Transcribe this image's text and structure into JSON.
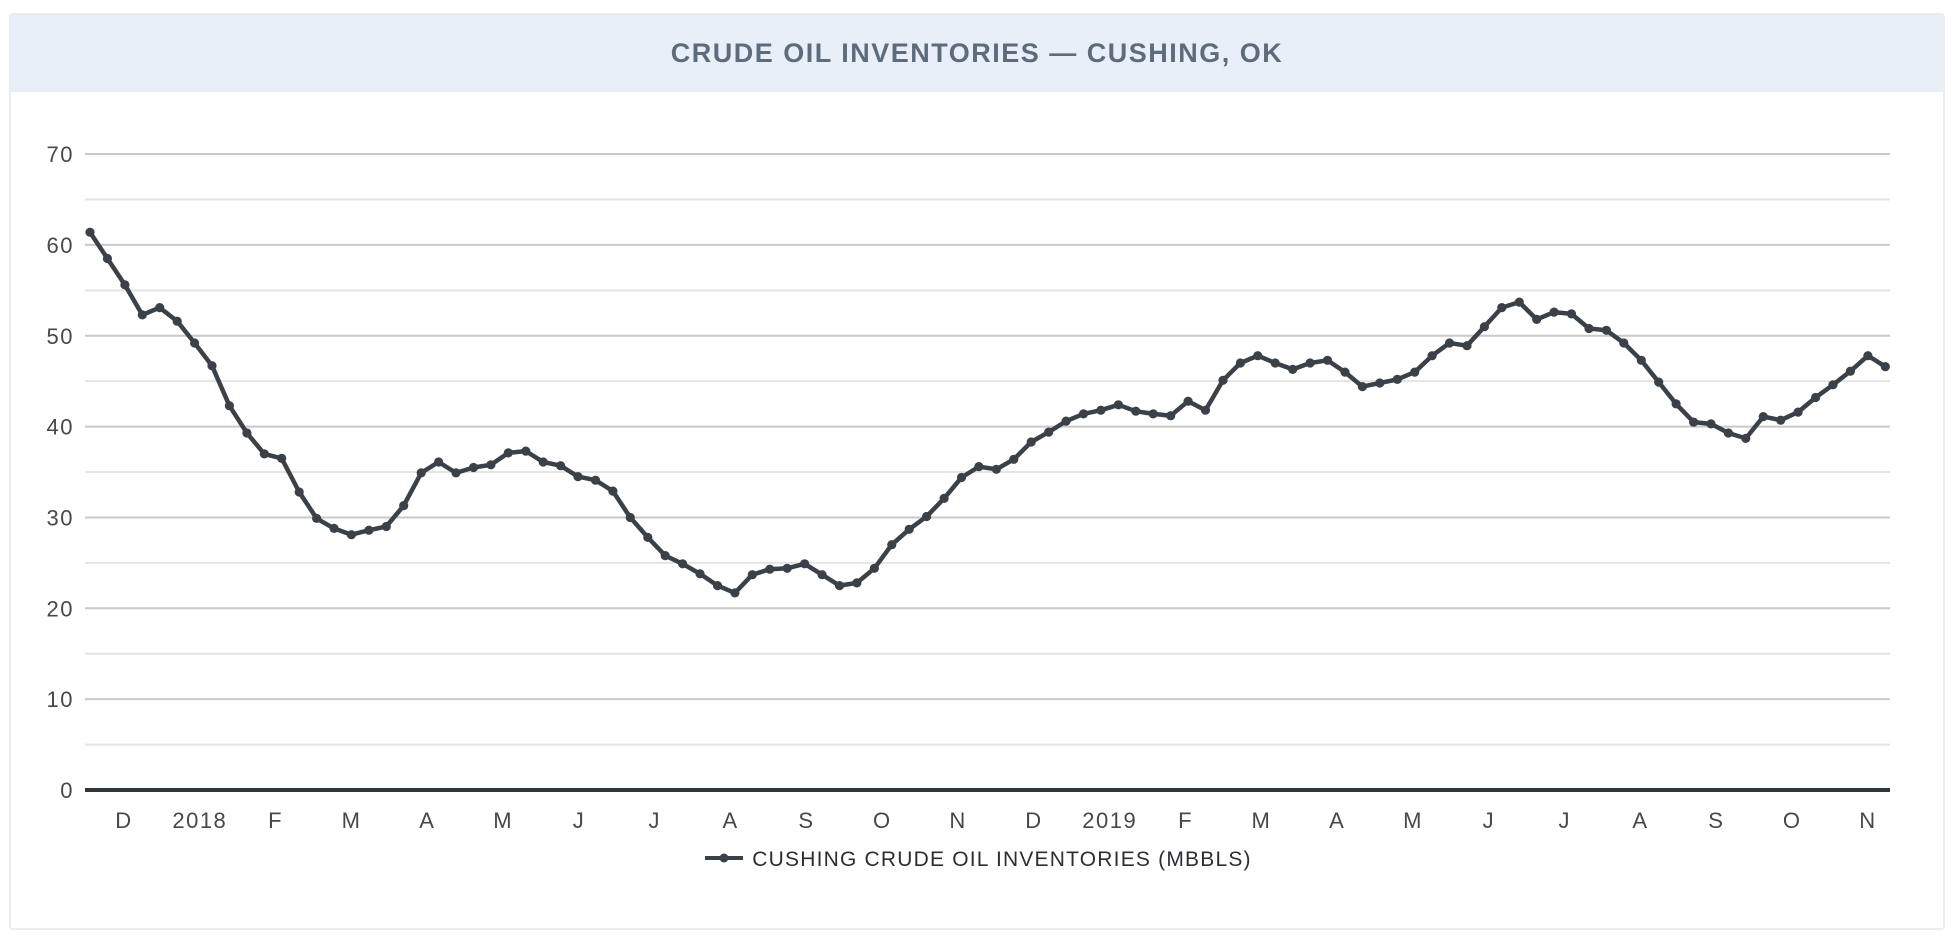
{
  "header": {
    "title": "CRUDE OIL INVENTORIES — CUSHING, OK"
  },
  "legend": {
    "label": "CUSHING CRUDE OIL INVENTORIES (MBBLS)"
  },
  "chart_data": {
    "type": "line",
    "title": "CRUDE OIL INVENTORIES — CUSHING, OK",
    "frequency": "weekly",
    "x_range_note": "Dec 2017 – Nov 2019",
    "x_tick_labels": [
      "D",
      "2018",
      "F",
      "M",
      "A",
      "M",
      "J",
      "J",
      "A",
      "S",
      "O",
      "N",
      "D",
      "2019",
      "F",
      "M",
      "A",
      "M",
      "J",
      "J",
      "A",
      "S",
      "O",
      "N"
    ],
    "y_ticks": [
      0,
      10,
      20,
      30,
      40,
      50,
      60,
      70
    ],
    "ylim": [
      0,
      70
    ],
    "grid": "horizontal gridlines every 5 (minor) and 10 (major)",
    "legend_position": "bottom-center",
    "series": [
      {
        "name": "CUSHING CRUDE OIL INVENTORIES (MBBLS)",
        "values": [
          61.4,
          58.5,
          55.6,
          52.3,
          53.1,
          51.6,
          49.2,
          46.7,
          42.3,
          39.3,
          37.0,
          36.5,
          32.8,
          29.9,
          28.8,
          28.1,
          28.6,
          29.0,
          31.3,
          34.9,
          36.1,
          34.9,
          35.5,
          35.8,
          37.1,
          37.3,
          36.1,
          35.7,
          34.5,
          34.1,
          32.9,
          30.0,
          27.8,
          25.8,
          24.9,
          23.8,
          22.5,
          21.7,
          23.7,
          24.3,
          24.4,
          24.9,
          23.7,
          22.5,
          22.8,
          24.4,
          27.0,
          28.7,
          30.1,
          32.1,
          34.4,
          35.6,
          35.3,
          36.4,
          38.3,
          39.4,
          40.6,
          41.4,
          41.8,
          42.4,
          41.7,
          41.4,
          41.2,
          42.8,
          41.8,
          45.1,
          47.0,
          47.8,
          47.0,
          46.3,
          47.0,
          47.3,
          46.0,
          44.4,
          44.8,
          45.2,
          46.0,
          47.8,
          49.2,
          48.9,
          51.0,
          53.1,
          53.7,
          51.8,
          52.6,
          52.4,
          50.8,
          50.6,
          49.2,
          47.3,
          44.9,
          42.5,
          40.5,
          40.3,
          39.3,
          38.7,
          41.1,
          40.7,
          41.6,
          43.2,
          44.6,
          46.1,
          47.8,
          46.6
        ]
      }
    ],
    "colors": {
      "line": "#3a4149",
      "marker": "#3a4149",
      "axis": "#2f363c",
      "grid_major": "#c9c9c9",
      "grid_minor": "#e4e4e4",
      "banner_bg": "#e9eff8",
      "title_text": "#5c6c7c",
      "tick_text": "#45484d",
      "legend_text": "#2b2f33",
      "frame_border": "#ececec"
    }
  }
}
